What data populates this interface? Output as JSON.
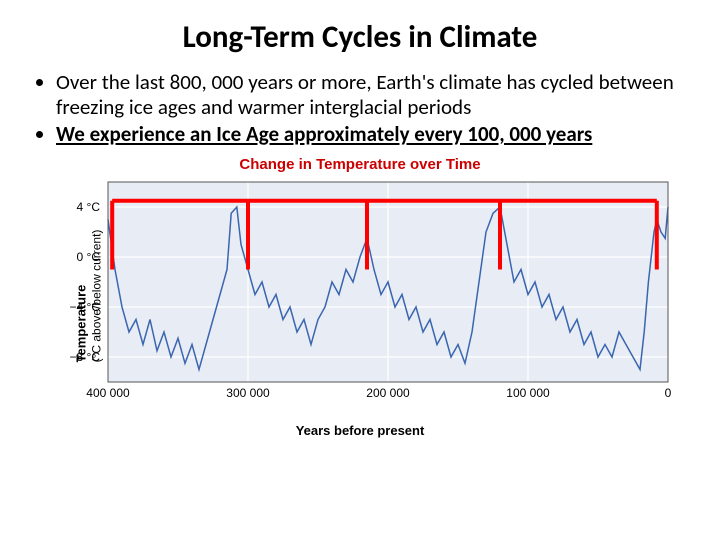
{
  "title": {
    "text": "Long-Term Cycles in Climate",
    "fontsize": 31
  },
  "bullets": {
    "fontsize": 21,
    "items": [
      {
        "html": "Over the last 800, 000 years or more, Earth's climate has cycled between freezing ice ages and warmer interglacial periods",
        "bold_underline": false
      },
      {
        "html": "We experience an Ice Age approximately every 100, 000 years",
        "bold_underline": true
      }
    ]
  },
  "chart": {
    "type": "line",
    "title": {
      "text": "Change in Temperature over Time",
      "color": "#CC0000",
      "fontsize": 15
    },
    "xlabel": "Years before present",
    "ylabel_main": "Temperature",
    "ylabel_sub": "(°C above/below current)",
    "background_color": "#E8ECF4",
    "grid_color": "#FFFFFF",
    "line_color": "#3A66B0",
    "line_width": 1.5,
    "red_marker_color": "#FF0000",
    "red_marker_width": 4,
    "x_axis": {
      "min": 400000,
      "max": 0,
      "ticks": [
        400000,
        300000,
        200000,
        100000,
        0
      ],
      "tick_labels": [
        "400 000",
        "300 000",
        "200 000",
        "100 000",
        "0"
      ]
    },
    "y_axis": {
      "min": -10,
      "max": 6,
      "ticks": [
        4,
        0,
        -4,
        -8
      ],
      "tick_labels": [
        "4 °C",
        "0 °C",
        "−4 °C",
        "−8 °C"
      ]
    },
    "red_markers_x": [
      397000,
      300000,
      215000,
      120000,
      8000
    ],
    "red_top_bar_y": 4.5,
    "series": [
      [
        400000,
        3.0
      ],
      [
        395000,
        -1
      ],
      [
        390000,
        -4
      ],
      [
        385000,
        -6
      ],
      [
        380000,
        -5
      ],
      [
        375000,
        -7
      ],
      [
        370000,
        -5
      ],
      [
        365000,
        -7.5
      ],
      [
        360000,
        -6
      ],
      [
        355000,
        -8
      ],
      [
        350000,
        -6.5
      ],
      [
        345000,
        -8.5
      ],
      [
        340000,
        -7
      ],
      [
        335000,
        -9
      ],
      [
        330000,
        -7
      ],
      [
        325000,
        -5
      ],
      [
        320000,
        -3
      ],
      [
        315000,
        -1
      ],
      [
        312000,
        3.5
      ],
      [
        308000,
        4
      ],
      [
        305000,
        1
      ],
      [
        300000,
        -1
      ],
      [
        295000,
        -3
      ],
      [
        290000,
        -2
      ],
      [
        285000,
        -4
      ],
      [
        280000,
        -3
      ],
      [
        275000,
        -5
      ],
      [
        270000,
        -4
      ],
      [
        265000,
        -6
      ],
      [
        260000,
        -5
      ],
      [
        255000,
        -7
      ],
      [
        250000,
        -5
      ],
      [
        245000,
        -4
      ],
      [
        240000,
        -2
      ],
      [
        235000,
        -3
      ],
      [
        230000,
        -1
      ],
      [
        225000,
        -2
      ],
      [
        220000,
        0
      ],
      [
        215000,
        1.5
      ],
      [
        210000,
        -1
      ],
      [
        205000,
        -3
      ],
      [
        200000,
        -2
      ],
      [
        195000,
        -4
      ],
      [
        190000,
        -3
      ],
      [
        185000,
        -5
      ],
      [
        180000,
        -4
      ],
      [
        175000,
        -6
      ],
      [
        170000,
        -5
      ],
      [
        165000,
        -7
      ],
      [
        160000,
        -6
      ],
      [
        155000,
        -8
      ],
      [
        150000,
        -7
      ],
      [
        145000,
        -8.5
      ],
      [
        140000,
        -6
      ],
      [
        135000,
        -2
      ],
      [
        130000,
        2
      ],
      [
        125000,
        3.5
      ],
      [
        120000,
        4
      ],
      [
        115000,
        1
      ],
      [
        110000,
        -2
      ],
      [
        105000,
        -1
      ],
      [
        100000,
        -3
      ],
      [
        95000,
        -2
      ],
      [
        90000,
        -4
      ],
      [
        85000,
        -3
      ],
      [
        80000,
        -5
      ],
      [
        75000,
        -4
      ],
      [
        70000,
        -6
      ],
      [
        65000,
        -5
      ],
      [
        60000,
        -7
      ],
      [
        55000,
        -6
      ],
      [
        50000,
        -8
      ],
      [
        45000,
        -7
      ],
      [
        40000,
        -8
      ],
      [
        35000,
        -6
      ],
      [
        30000,
        -7
      ],
      [
        25000,
        -8
      ],
      [
        20000,
        -9
      ],
      [
        17000,
        -6
      ],
      [
        14000,
        -2
      ],
      [
        12000,
        0
      ],
      [
        10000,
        2
      ],
      [
        8000,
        3
      ],
      [
        5000,
        2
      ],
      [
        2000,
        1.5
      ],
      [
        0,
        4
      ]
    ]
  }
}
